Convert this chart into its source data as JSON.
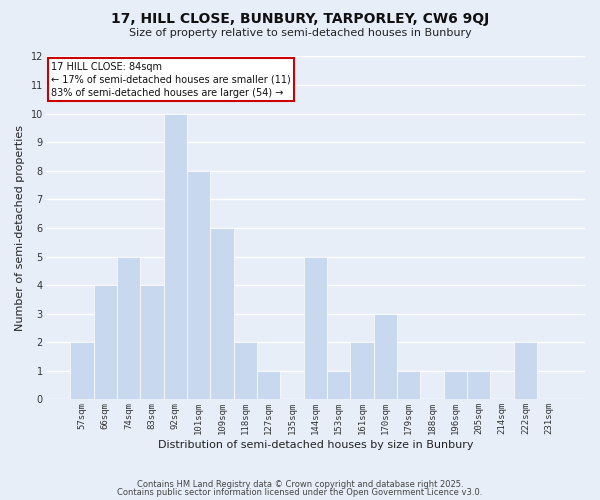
{
  "title": "17, HILL CLOSE, BUNBURY, TARPORLEY, CW6 9QJ",
  "subtitle": "Size of property relative to semi-detached houses in Bunbury",
  "xlabel": "Distribution of semi-detached houses by size in Bunbury",
  "ylabel": "Number of semi-detached properties",
  "categories": [
    "57sqm",
    "66sqm",
    "74sqm",
    "83sqm",
    "92sqm",
    "101sqm",
    "109sqm",
    "118sqm",
    "127sqm",
    "135sqm",
    "144sqm",
    "153sqm",
    "161sqm",
    "170sqm",
    "179sqm",
    "188sqm",
    "196sqm",
    "205sqm",
    "214sqm",
    "222sqm",
    "231sqm"
  ],
  "values": [
    2,
    4,
    5,
    4,
    10,
    8,
    6,
    2,
    1,
    0,
    5,
    1,
    2,
    3,
    1,
    0,
    1,
    1,
    0,
    2,
    0
  ],
  "bar_color": "#c8d8ee",
  "bar_edge_color": "#c8d8ee",
  "background_color": "#e8eef8",
  "plot_bg_color": "#e8eef8",
  "grid_color": "#ffffff",
  "ylim": [
    0,
    12
  ],
  "yticks": [
    0,
    1,
    2,
    3,
    4,
    5,
    6,
    7,
    8,
    9,
    10,
    11,
    12
  ],
  "annotation_title": "17 HILL CLOSE: 84sqm",
  "annotation_line1": "← 17% of semi-detached houses are smaller (11)",
  "annotation_line2": "83% of semi-detached houses are larger (54) →",
  "annotation_box_color": "#ffffff",
  "annotation_box_edge_color": "#cc0000",
  "footer1": "Contains HM Land Registry data © Crown copyright and database right 2025.",
  "footer2": "Contains public sector information licensed under the Open Government Licence v3.0.",
  "title_fontsize": 10,
  "subtitle_fontsize": 8,
  "footer_fontsize": 6
}
